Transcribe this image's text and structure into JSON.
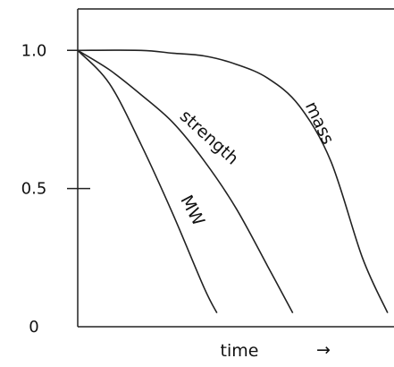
{
  "chart_data": {
    "type": "line",
    "title": "",
    "xlabel": "time",
    "ylabel": "",
    "x_axis_arrow": "→",
    "ylim": [
      0,
      1.15
    ],
    "xlim": [
      0,
      1
    ],
    "y_ticks": [
      {
        "value": 1.0,
        "label": "1.0"
      },
      {
        "value": 0.5,
        "label": "0.5"
      },
      {
        "value": 0,
        "label": "0"
      }
    ],
    "grid": false,
    "legend": "none",
    "series": [
      {
        "name": "MW",
        "x": [
          0,
          0.1,
          0.2,
          0.3,
          0.4,
          0.44
        ],
        "y": [
          1.0,
          0.88,
          0.66,
          0.41,
          0.14,
          0.05
        ]
      },
      {
        "name": "strength",
        "x": [
          0,
          0.1,
          0.2,
          0.3,
          0.4,
          0.5,
          0.6,
          0.68
        ],
        "y": [
          1.0,
          0.93,
          0.84,
          0.74,
          0.6,
          0.43,
          0.22,
          0.05
        ]
      },
      {
        "name": "mass",
        "x": [
          0,
          0.2,
          0.3,
          0.4,
          0.5,
          0.6,
          0.7,
          0.8,
          0.9,
          0.98
        ],
        "y": [
          1.0,
          1.0,
          0.99,
          0.98,
          0.95,
          0.9,
          0.8,
          0.6,
          0.25,
          0.05
        ]
      }
    ]
  }
}
